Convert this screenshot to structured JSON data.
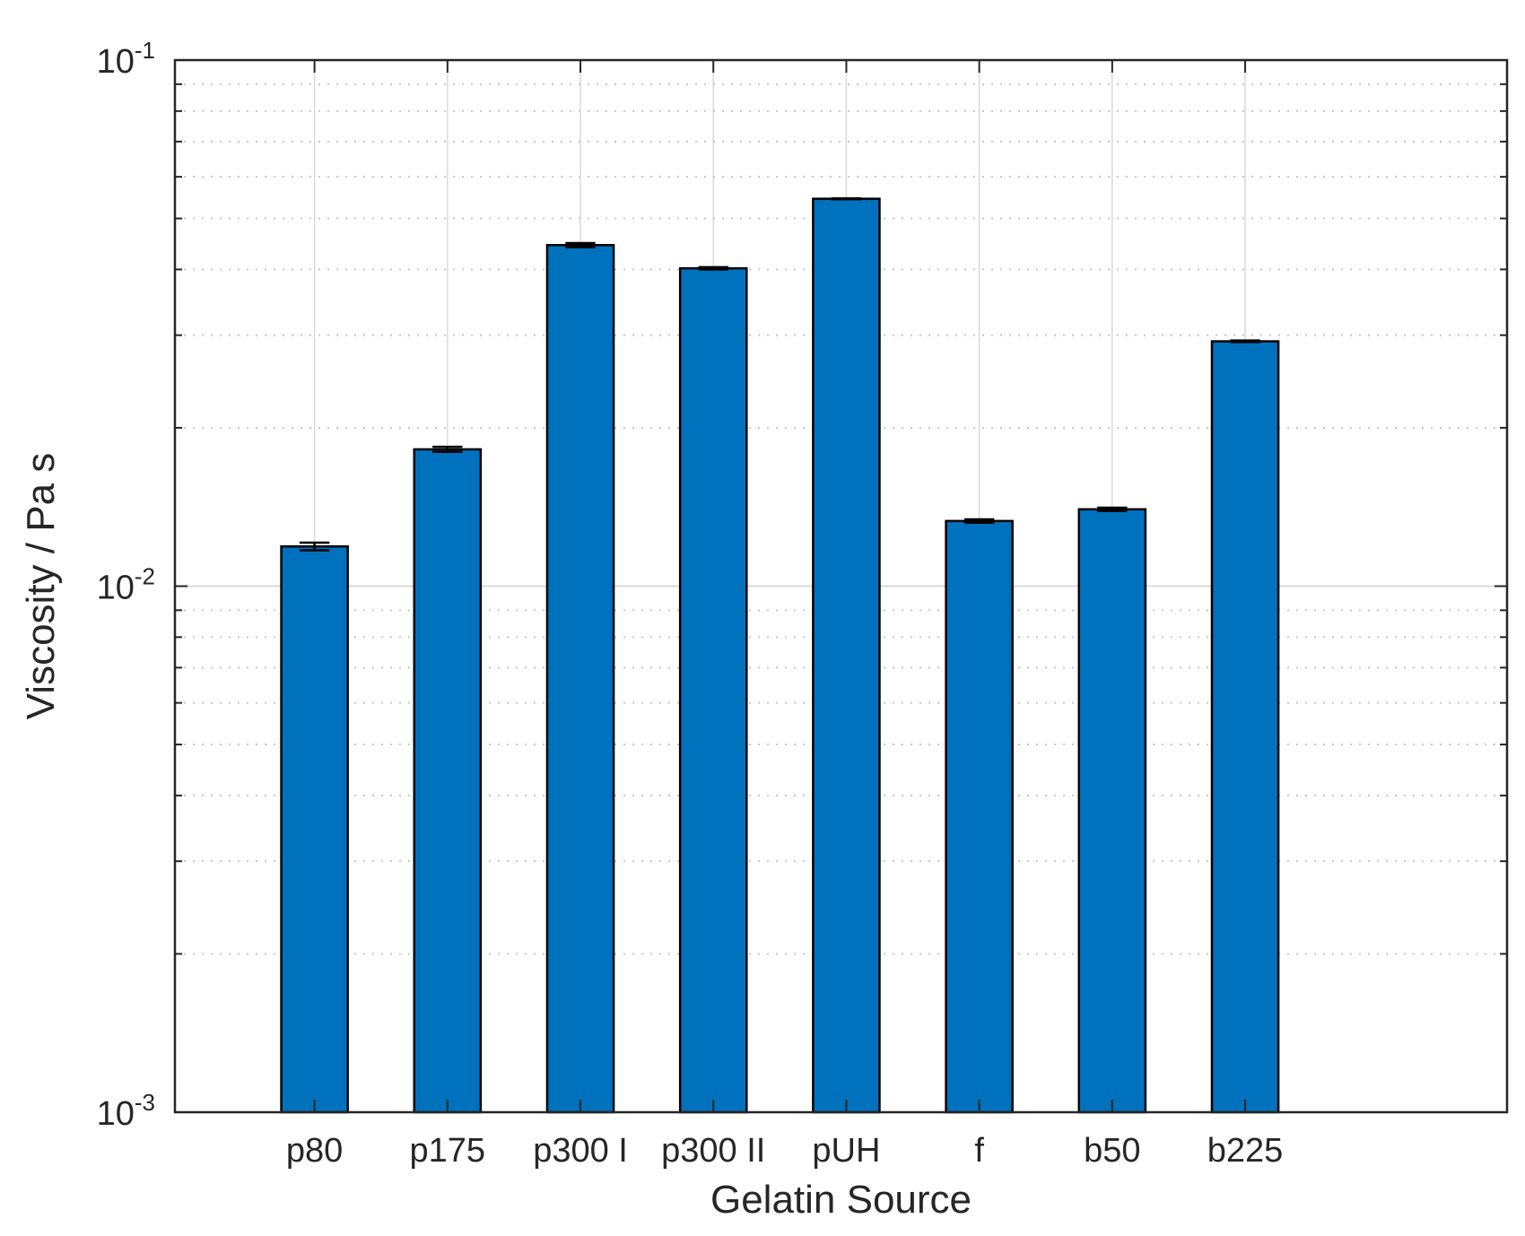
{
  "chart_data": {
    "type": "bar",
    "title": "",
    "xlabel": "Gelatin Source",
    "ylabel": "Viscosity / Pa s",
    "yscale": "log",
    "ylim": [
      0.001,
      0.1
    ],
    "categories": [
      "p80",
      "p175",
      "p300 I",
      "p300 II",
      "pUH",
      "f",
      "b50",
      "b225"
    ],
    "values": [
      0.0119,
      0.0182,
      0.0445,
      0.0402,
      0.0545,
      0.0133,
      0.014,
      0.0292
    ],
    "errors": [
      0.0002,
      0.0002,
      0.0004,
      0.0002,
      0.0001,
      0.0001,
      0.0001,
      0.0001
    ],
    "y_ticks": [
      {
        "base": "10",
        "exp": "-3",
        "value": 0.001
      },
      {
        "base": "10",
        "exp": "-2",
        "value": 0.01
      },
      {
        "base": "10",
        "exp": "-1",
        "value": 0.1
      }
    ],
    "grid": true,
    "bar_color": "#0072BD"
  }
}
